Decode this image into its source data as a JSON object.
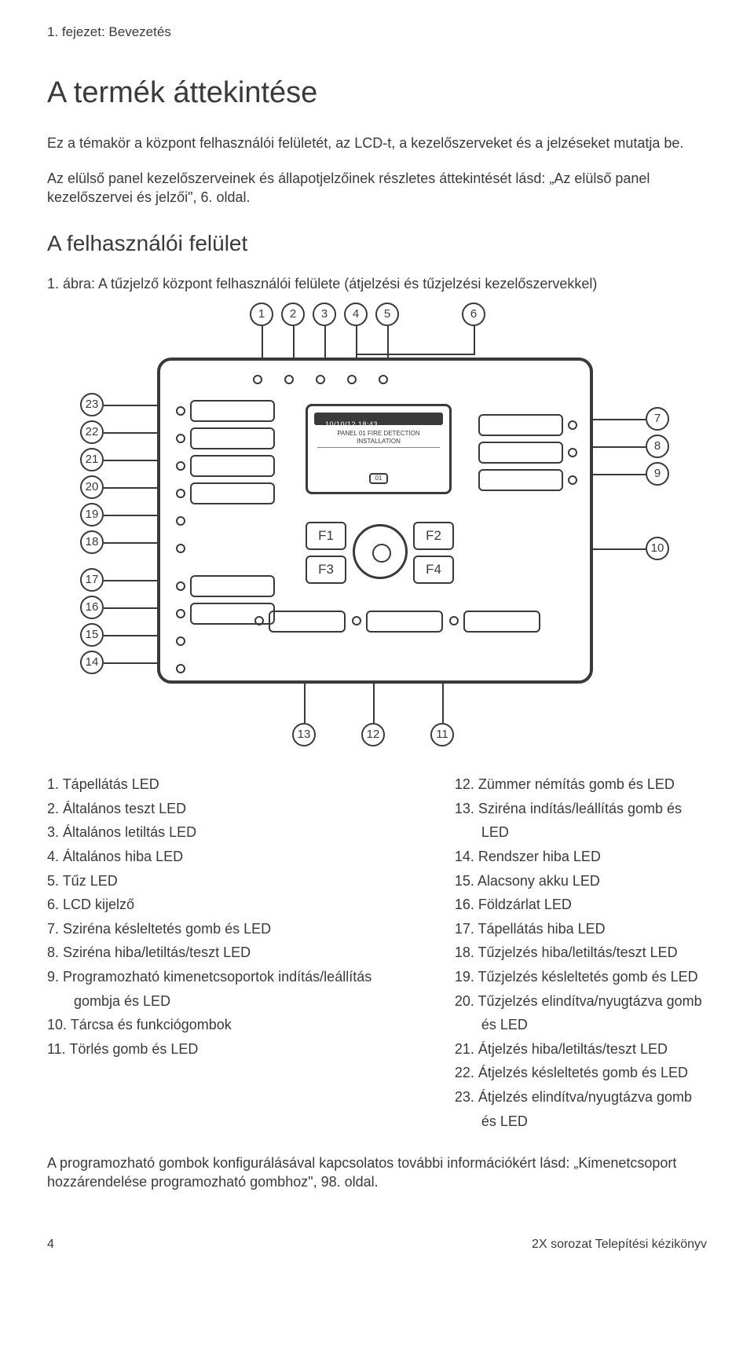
{
  "chapter_label": "1. fejezet: Bevezetés",
  "title": "A termék áttekintése",
  "intro_para": "Ez a témakör a központ felhasználói felületét, az LCD-t, a kezelőszerveket és a jelzéseket mutatja be.",
  "intro_para2": "Az elülső panel kezelőszerveinek és állapotjelzőinek részletes áttekintését lásd: „Az elülső panel kezelőszervei és jelzői\", 6. oldal.",
  "section_heading": "A felhasználói felület",
  "figure_caption": "1. ábra: A tűzjelző központ felhasználói felülete (átjelzési és tűzjelzési kezelőszervekkel)",
  "lcd": {
    "bar_text": "10/10/12 18:43",
    "title": "PANEL 01\nFIRE DETECTION INSTALLATION",
    "chip": "01"
  },
  "fkeys": [
    "F1",
    "F2",
    "F3",
    "F4"
  ],
  "callouts_top": [
    "1",
    "2",
    "3",
    "4",
    "5",
    "6"
  ],
  "callouts_left": [
    "23",
    "22",
    "21",
    "20",
    "19",
    "18",
    "17",
    "16",
    "15",
    "14"
  ],
  "callouts_right": [
    "7",
    "8",
    "9",
    "10"
  ],
  "callouts_bottom": [
    "13",
    "12",
    "11"
  ],
  "legend_left": [
    "1.  Tápellátás LED",
    "2.  Általános teszt LED",
    "3.  Általános letiltás LED",
    "4.  Általános hiba LED",
    "5.  Tűz LED",
    "6.  LCD kijelző",
    "7.  Sziréna késleltetés gomb és LED",
    "8.  Sziréna hiba/letiltás/teszt LED",
    "9.  Programozható kimenetcsoportok indítás/leállítás gombja és LED",
    "10. Tárcsa és funkciógombok",
    "11. Törlés gomb és LED"
  ],
  "legend_right": [
    "12. Zümmer némítás gomb és LED",
    "13. Sziréna indítás/leállítás gomb és LED",
    "14. Rendszer hiba LED",
    "15. Alacsony akku LED",
    "16. Földzárlat LED",
    "17. Tápellátás hiba LED",
    "18. Tűzjelzés hiba/letiltás/teszt LED",
    "19. Tűzjelzés késleltetés gomb és LED",
    "20. Tűzjelzés elindítva/nyugtázva gomb és LED",
    "21. Átjelzés hiba/letiltás/teszt LED",
    "22. Átjelzés késleltetés gomb és LED",
    "23. Átjelzés elindítva/nyugtázva gomb és LED"
  ],
  "closing_para": "A programozható gombok konfigurálásával kapcsolatos további információkért lásd: „Kimenetcsoport hozzárendelése programozható gombhoz\", 98. oldal.",
  "footer_page": "4",
  "footer_doc": "2X sorozat Telepítési kézikönyv"
}
